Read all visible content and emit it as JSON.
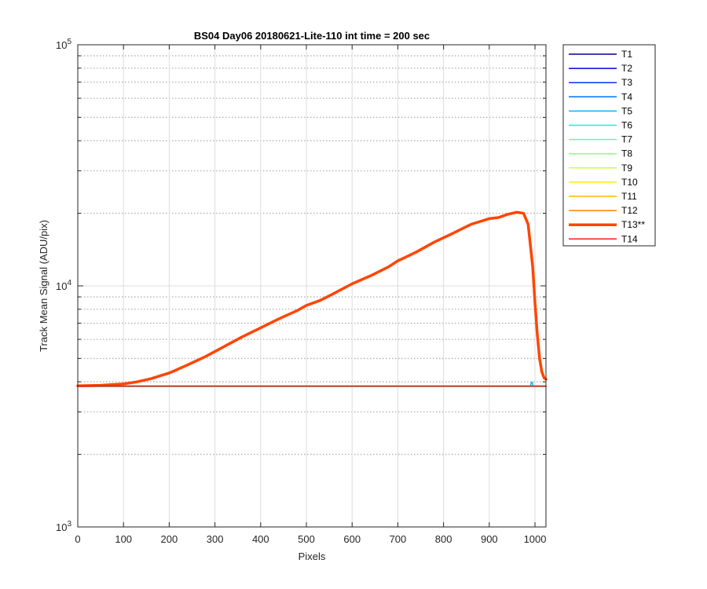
{
  "chart_data": {
    "type": "line",
    "title": "BS04 Day06 20180621-Lite-110 int time = 200 sec",
    "xlabel": "Pixels",
    "ylabel": "Track Mean Signal (ADU/pix)",
    "xlim": [
      0,
      1024
    ],
    "ylim": [
      1000,
      100000
    ],
    "yscale": "log",
    "x_ticks": [
      0,
      100,
      200,
      300,
      400,
      500,
      600,
      700,
      800,
      900,
      1000
    ],
    "y_ticks": [
      {
        "value": 1000,
        "base": "10",
        "exp": "3"
      },
      {
        "value": 10000,
        "base": "10",
        "exp": "4"
      },
      {
        "value": 100000,
        "base": "10",
        "exp": "5"
      }
    ],
    "grid": true,
    "minor_grid": true,
    "legend_position": "outside-right",
    "series": [
      {
        "name": "T1",
        "color": "#00008f",
        "width": 1.5,
        "x": [
          0,
          1024
        ],
        "y": [
          3820,
          3820
        ]
      },
      {
        "name": "T2",
        "color": "#0000d6",
        "width": 1.5,
        "x": [
          0,
          1024
        ],
        "y": [
          3825,
          3825
        ]
      },
      {
        "name": "T3",
        "color": "#0034ff",
        "width": 1.5,
        "x": [
          0,
          1024
        ],
        "y": [
          3830,
          3830
        ]
      },
      {
        "name": "T4",
        "color": "#0072ff",
        "width": 1.5,
        "x": [
          0,
          1024
        ],
        "y": [
          3830,
          3830
        ]
      },
      {
        "name": "T5",
        "color": "#00b4ff",
        "width": 1.5,
        "x": [
          0,
          990,
          992,
          994,
          996,
          1024
        ],
        "y": [
          3830,
          3830,
          3980,
          3980,
          3830,
          3830
        ]
      },
      {
        "name": "T6",
        "color": "#13f0eb",
        "width": 1.5,
        "x": [
          0,
          1024
        ],
        "y": [
          3830,
          3830
        ]
      },
      {
        "name": "T7",
        "color": "#5cffb4",
        "width": 1.5,
        "x": [
          0,
          1024
        ],
        "y": [
          3832,
          3832
        ]
      },
      {
        "name": "T8",
        "color": "#8fff7a",
        "width": 1.5,
        "x": [
          0,
          1024
        ],
        "y": [
          3832,
          3832
        ]
      },
      {
        "name": "T9",
        "color": "#c8ff3c",
        "width": 1.5,
        "x": [
          0,
          1024
        ],
        "y": [
          3835,
          3835
        ]
      },
      {
        "name": "T10",
        "color": "#ffee00",
        "width": 1.5,
        "x": [
          0,
          1024
        ],
        "y": [
          3835,
          3835
        ]
      },
      {
        "name": "T11",
        "color": "#ffb800",
        "width": 1.5,
        "x": [
          0,
          1024
        ],
        "y": [
          3840,
          3840
        ]
      },
      {
        "name": "T12",
        "color": "#ff8200",
        "width": 1.5,
        "x": [
          0,
          1024
        ],
        "y": [
          3845,
          3845
        ]
      },
      {
        "name": "T13**",
        "color": "#ff4500",
        "width": 3.5,
        "x": [
          0,
          50,
          100,
          130,
          160,
          200,
          240,
          280,
          320,
          360,
          400,
          440,
          480,
          500,
          530,
          560,
          600,
          640,
          680,
          700,
          740,
          780,
          820,
          860,
          900,
          920,
          940,
          960,
          975,
          985,
          995,
          1000,
          1005,
          1010,
          1015,
          1020,
          1024
        ],
        "y": [
          3850,
          3870,
          3920,
          4000,
          4120,
          4350,
          4700,
          5100,
          5600,
          6150,
          6700,
          7300,
          7900,
          8300,
          8700,
          9300,
          10200,
          11000,
          12000,
          12700,
          13800,
          15200,
          16500,
          18000,
          19000,
          19200,
          19800,
          20200,
          20000,
          18000,
          12000,
          8500,
          6300,
          5000,
          4400,
          4150,
          4100
        ]
      },
      {
        "name": "T14",
        "color": "#ff1a1a",
        "width": 1.5,
        "x": [
          0,
          1024
        ],
        "y": [
          3838,
          3838
        ]
      }
    ]
  }
}
